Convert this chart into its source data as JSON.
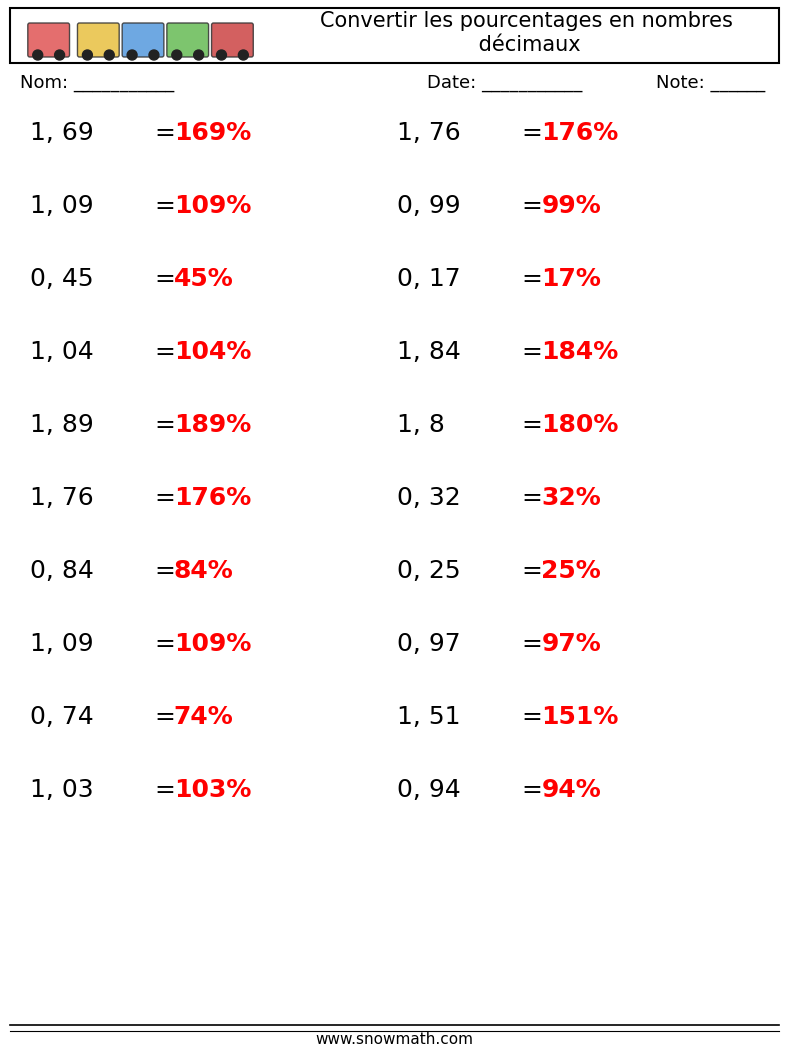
{
  "title": "Convertir les pourcentages en nombres\n décimaux",
  "header_box_color": "#000000",
  "background_color": "#ffffff",
  "text_color_black": "#000000",
  "text_color_red": "#ff0000",
  "nom_label": "Nom: ___________",
  "date_label": "Date: ___________",
  "note_label": "Note: ______",
  "footer_text": "www.snowmath.com",
  "left_questions": [
    {
      "decimal": "1, 69",
      "answer": "169"
    },
    {
      "decimal": "1, 09",
      "answer": "109"
    },
    {
      "decimal": "0, 45",
      "answer": "45"
    },
    {
      "decimal": "1, 04",
      "answer": "104"
    },
    {
      "decimal": "1, 89",
      "answer": "189"
    },
    {
      "decimal": "1, 76",
      "answer": "176"
    },
    {
      "decimal": "0, 84",
      "answer": "84"
    },
    {
      "decimal": "1, 09",
      "answer": "109"
    },
    {
      "decimal": "0, 74",
      "answer": "74"
    },
    {
      "decimal": "1, 03",
      "answer": "103"
    }
  ],
  "right_questions": [
    {
      "decimal": "1, 76",
      "answer": "176"
    },
    {
      "decimal": "0, 99",
      "answer": "99"
    },
    {
      "decimal": "0, 17",
      "answer": "17"
    },
    {
      "decimal": "1, 84",
      "answer": "184"
    },
    {
      "decimal": "1, 8",
      "answer": "180"
    },
    {
      "decimal": "0, 32",
      "answer": "32"
    },
    {
      "decimal": "0, 25",
      "answer": "25"
    },
    {
      "decimal": "0, 97",
      "answer": "97"
    },
    {
      "decimal": "1, 51",
      "answer": "151"
    },
    {
      "decimal": "0, 94",
      "answer": "94"
    }
  ],
  "font_size_questions": 18,
  "font_size_header": 15,
  "font_size_label": 13,
  "font_size_footer": 11
}
